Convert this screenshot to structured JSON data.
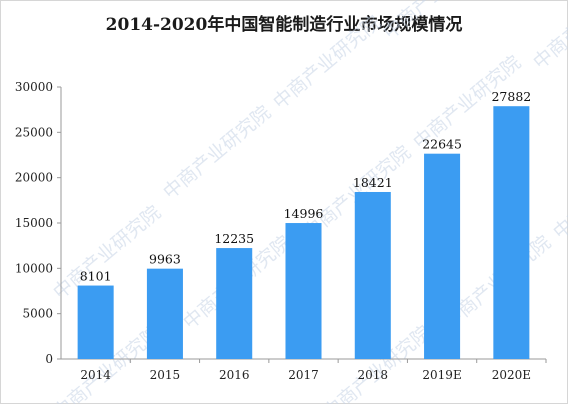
{
  "chart_data": {
    "type": "bar",
    "title": "2014-2020年中国智能制造行业市场规模情况",
    "categories": [
      "2014",
      "2015",
      "2016",
      "2017",
      "2018",
      "2019E",
      "2020E"
    ],
    "values": [
      8101,
      9963,
      12235,
      14996,
      18421,
      22645,
      27882
    ],
    "data_labels": [
      "8101",
      "9963",
      "12235",
      "14996",
      "18421",
      "22645",
      "27882"
    ],
    "y_ticks": [
      0,
      5000,
      10000,
      15000,
      20000,
      25000,
      30000
    ],
    "y_tick_labels": [
      "0",
      "5000",
      "10000",
      "15000",
      "20000",
      "25000",
      "30000"
    ],
    "ylim": [
      0,
      30000
    ],
    "xlabel": "",
    "ylabel": "",
    "grid": false,
    "legend": "none",
    "bar_color": "#3b9cf2"
  },
  "watermark": {
    "text": "中商产业研究院"
  }
}
